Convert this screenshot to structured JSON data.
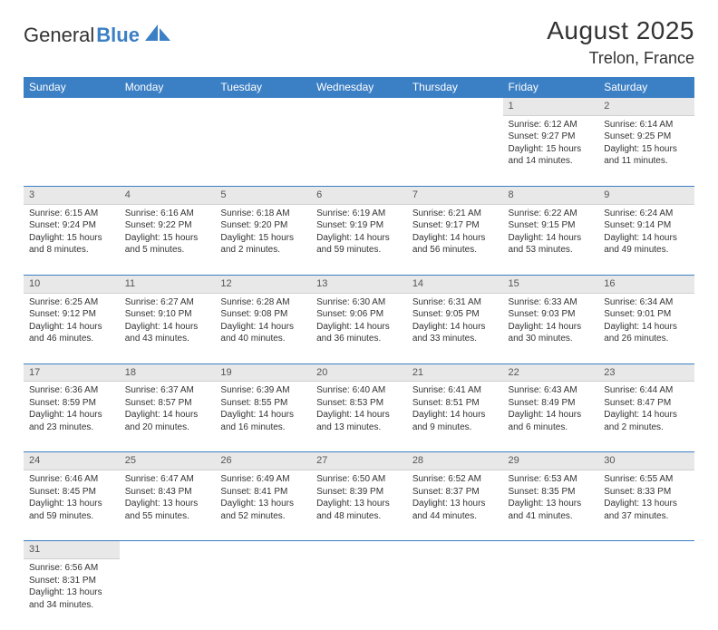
{
  "logo": {
    "text1": "General",
    "text2": "Blue"
  },
  "title": "August 2025",
  "location": "Trelon, France",
  "colors": {
    "header_bg": "#3b7fc4",
    "header_text": "#ffffff",
    "daynum_bg": "#e8e8e8",
    "border": "#3b7fc4",
    "text": "#333333"
  },
  "weekdays": [
    "Sunday",
    "Monday",
    "Tuesday",
    "Wednesday",
    "Thursday",
    "Friday",
    "Saturday"
  ],
  "weeks": [
    [
      null,
      null,
      null,
      null,
      null,
      {
        "n": "1",
        "sr": "Sunrise: 6:12 AM",
        "ss": "Sunset: 9:27 PM",
        "d1": "Daylight: 15 hours",
        "d2": "and 14 minutes."
      },
      {
        "n": "2",
        "sr": "Sunrise: 6:14 AM",
        "ss": "Sunset: 9:25 PM",
        "d1": "Daylight: 15 hours",
        "d2": "and 11 minutes."
      }
    ],
    [
      {
        "n": "3",
        "sr": "Sunrise: 6:15 AM",
        "ss": "Sunset: 9:24 PM",
        "d1": "Daylight: 15 hours",
        "d2": "and 8 minutes."
      },
      {
        "n": "4",
        "sr": "Sunrise: 6:16 AM",
        "ss": "Sunset: 9:22 PM",
        "d1": "Daylight: 15 hours",
        "d2": "and 5 minutes."
      },
      {
        "n": "5",
        "sr": "Sunrise: 6:18 AM",
        "ss": "Sunset: 9:20 PM",
        "d1": "Daylight: 15 hours",
        "d2": "and 2 minutes."
      },
      {
        "n": "6",
        "sr": "Sunrise: 6:19 AM",
        "ss": "Sunset: 9:19 PM",
        "d1": "Daylight: 14 hours",
        "d2": "and 59 minutes."
      },
      {
        "n": "7",
        "sr": "Sunrise: 6:21 AM",
        "ss": "Sunset: 9:17 PM",
        "d1": "Daylight: 14 hours",
        "d2": "and 56 minutes."
      },
      {
        "n": "8",
        "sr": "Sunrise: 6:22 AM",
        "ss": "Sunset: 9:15 PM",
        "d1": "Daylight: 14 hours",
        "d2": "and 53 minutes."
      },
      {
        "n": "9",
        "sr": "Sunrise: 6:24 AM",
        "ss": "Sunset: 9:14 PM",
        "d1": "Daylight: 14 hours",
        "d2": "and 49 minutes."
      }
    ],
    [
      {
        "n": "10",
        "sr": "Sunrise: 6:25 AM",
        "ss": "Sunset: 9:12 PM",
        "d1": "Daylight: 14 hours",
        "d2": "and 46 minutes."
      },
      {
        "n": "11",
        "sr": "Sunrise: 6:27 AM",
        "ss": "Sunset: 9:10 PM",
        "d1": "Daylight: 14 hours",
        "d2": "and 43 minutes."
      },
      {
        "n": "12",
        "sr": "Sunrise: 6:28 AM",
        "ss": "Sunset: 9:08 PM",
        "d1": "Daylight: 14 hours",
        "d2": "and 40 minutes."
      },
      {
        "n": "13",
        "sr": "Sunrise: 6:30 AM",
        "ss": "Sunset: 9:06 PM",
        "d1": "Daylight: 14 hours",
        "d2": "and 36 minutes."
      },
      {
        "n": "14",
        "sr": "Sunrise: 6:31 AM",
        "ss": "Sunset: 9:05 PM",
        "d1": "Daylight: 14 hours",
        "d2": "and 33 minutes."
      },
      {
        "n": "15",
        "sr": "Sunrise: 6:33 AM",
        "ss": "Sunset: 9:03 PM",
        "d1": "Daylight: 14 hours",
        "d2": "and 30 minutes."
      },
      {
        "n": "16",
        "sr": "Sunrise: 6:34 AM",
        "ss": "Sunset: 9:01 PM",
        "d1": "Daylight: 14 hours",
        "d2": "and 26 minutes."
      }
    ],
    [
      {
        "n": "17",
        "sr": "Sunrise: 6:36 AM",
        "ss": "Sunset: 8:59 PM",
        "d1": "Daylight: 14 hours",
        "d2": "and 23 minutes."
      },
      {
        "n": "18",
        "sr": "Sunrise: 6:37 AM",
        "ss": "Sunset: 8:57 PM",
        "d1": "Daylight: 14 hours",
        "d2": "and 20 minutes."
      },
      {
        "n": "19",
        "sr": "Sunrise: 6:39 AM",
        "ss": "Sunset: 8:55 PM",
        "d1": "Daylight: 14 hours",
        "d2": "and 16 minutes."
      },
      {
        "n": "20",
        "sr": "Sunrise: 6:40 AM",
        "ss": "Sunset: 8:53 PM",
        "d1": "Daylight: 14 hours",
        "d2": "and 13 minutes."
      },
      {
        "n": "21",
        "sr": "Sunrise: 6:41 AM",
        "ss": "Sunset: 8:51 PM",
        "d1": "Daylight: 14 hours",
        "d2": "and 9 minutes."
      },
      {
        "n": "22",
        "sr": "Sunrise: 6:43 AM",
        "ss": "Sunset: 8:49 PM",
        "d1": "Daylight: 14 hours",
        "d2": "and 6 minutes."
      },
      {
        "n": "23",
        "sr": "Sunrise: 6:44 AM",
        "ss": "Sunset: 8:47 PM",
        "d1": "Daylight: 14 hours",
        "d2": "and 2 minutes."
      }
    ],
    [
      {
        "n": "24",
        "sr": "Sunrise: 6:46 AM",
        "ss": "Sunset: 8:45 PM",
        "d1": "Daylight: 13 hours",
        "d2": "and 59 minutes."
      },
      {
        "n": "25",
        "sr": "Sunrise: 6:47 AM",
        "ss": "Sunset: 8:43 PM",
        "d1": "Daylight: 13 hours",
        "d2": "and 55 minutes."
      },
      {
        "n": "26",
        "sr": "Sunrise: 6:49 AM",
        "ss": "Sunset: 8:41 PM",
        "d1": "Daylight: 13 hours",
        "d2": "and 52 minutes."
      },
      {
        "n": "27",
        "sr": "Sunrise: 6:50 AM",
        "ss": "Sunset: 8:39 PM",
        "d1": "Daylight: 13 hours",
        "d2": "and 48 minutes."
      },
      {
        "n": "28",
        "sr": "Sunrise: 6:52 AM",
        "ss": "Sunset: 8:37 PM",
        "d1": "Daylight: 13 hours",
        "d2": "and 44 minutes."
      },
      {
        "n": "29",
        "sr": "Sunrise: 6:53 AM",
        "ss": "Sunset: 8:35 PM",
        "d1": "Daylight: 13 hours",
        "d2": "and 41 minutes."
      },
      {
        "n": "30",
        "sr": "Sunrise: 6:55 AM",
        "ss": "Sunset: 8:33 PM",
        "d1": "Daylight: 13 hours",
        "d2": "and 37 minutes."
      }
    ],
    [
      {
        "n": "31",
        "sr": "Sunrise: 6:56 AM",
        "ss": "Sunset: 8:31 PM",
        "d1": "Daylight: 13 hours",
        "d2": "and 34 minutes."
      },
      null,
      null,
      null,
      null,
      null,
      null
    ]
  ]
}
